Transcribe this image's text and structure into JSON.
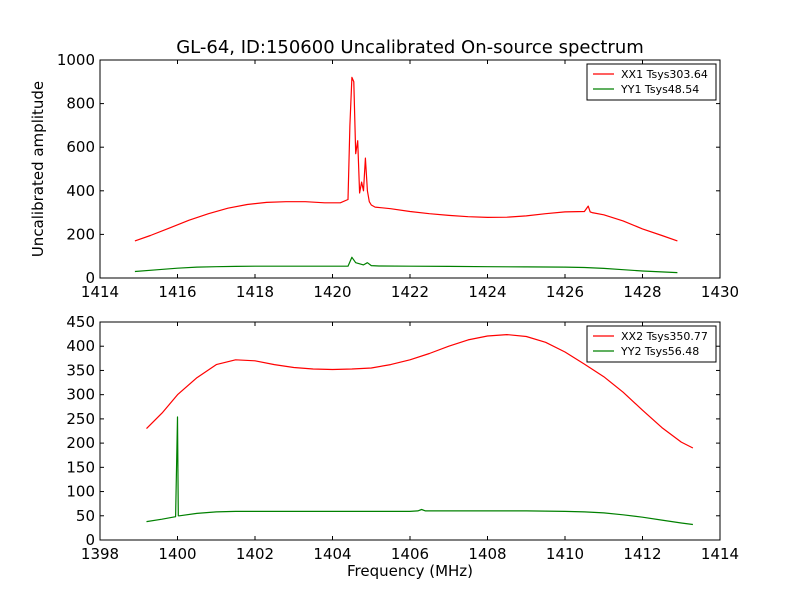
{
  "chart_data": [
    {
      "type": "line",
      "title": "GL-64, ID:150600 Uncalibrated On-source spectrum",
      "xlabel": "",
      "ylabel": "Uncalibrated amplitude",
      "xlim": [
        1414,
        1430
      ],
      "ylim": [
        0,
        1000
      ],
      "xticks": [
        "1414",
        "1416",
        "1418",
        "1420",
        "1422",
        "1424",
        "1426",
        "1428",
        "1430"
      ],
      "yticks": [
        "0",
        "200",
        "400",
        "600",
        "800",
        "1000"
      ],
      "legend_position": "top-right",
      "series": [
        {
          "name": "XX1 Tsys303.64",
          "color": "#ff0000",
          "x": [
            1414.9,
            1415.3,
            1415.8,
            1416.3,
            1416.8,
            1417.3,
            1417.8,
            1418.3,
            1418.8,
            1419.3,
            1419.8,
            1420.2,
            1420.4,
            1420.45,
            1420.5,
            1420.55,
            1420.6,
            1420.65,
            1420.7,
            1420.75,
            1420.8,
            1420.85,
            1420.9,
            1420.95,
            1421.0,
            1421.1,
            1421.5,
            1422.0,
            1422.5,
            1423.0,
            1423.5,
            1424.0,
            1424.5,
            1425.0,
            1425.5,
            1426.0,
            1426.5,
            1426.6,
            1426.65,
            1426.7,
            1427.0,
            1427.5,
            1428.0,
            1428.5,
            1428.9
          ],
          "values": [
            170,
            195,
            230,
            265,
            295,
            320,
            337,
            347,
            350,
            350,
            345,
            345,
            360,
            700,
            920,
            900,
            570,
            630,
            390,
            440,
            400,
            550,
            400,
            350,
            335,
            325,
            318,
            305,
            295,
            287,
            281,
            278,
            279,
            285,
            295,
            303,
            305,
            330,
            303,
            300,
            290,
            262,
            225,
            195,
            170
          ]
        },
        {
          "name": "YY1 Tsys48.54",
          "color": "#008000",
          "x": [
            1414.9,
            1415.5,
            1416.0,
            1416.5,
            1417.0,
            1417.5,
            1418.0,
            1419.0,
            1420.0,
            1420.4,
            1420.5,
            1420.6,
            1420.7,
            1420.8,
            1420.9,
            1421.0,
            1421.2,
            1422.0,
            1423.0,
            1424.0,
            1425.0,
            1426.0,
            1426.5,
            1427.0,
            1427.5,
            1428.0,
            1428.9
          ],
          "values": [
            30,
            38,
            45,
            50,
            52,
            53,
            54,
            54,
            54,
            54,
            95,
            70,
            65,
            60,
            70,
            57,
            55,
            54,
            53,
            52,
            51,
            50,
            48,
            44,
            38,
            32,
            25
          ]
        }
      ]
    },
    {
      "type": "line",
      "title": "",
      "xlabel": "Frequency (MHz)",
      "ylabel": "",
      "xlim": [
        1398,
        1414
      ],
      "ylim": [
        0,
        450
      ],
      "xticks": [
        "1398",
        "1400",
        "1402",
        "1404",
        "1406",
        "1408",
        "1410",
        "1412",
        "1414"
      ],
      "yticks": [
        "0",
        "50",
        "100",
        "150",
        "200",
        "250",
        "300",
        "350",
        "400",
        "450"
      ],
      "legend_position": "top-right",
      "series": [
        {
          "name": "XX2 Tsys350.77",
          "color": "#ff0000",
          "x": [
            1399.2,
            1399.6,
            1400.0,
            1400.5,
            1401.0,
            1401.5,
            1402.0,
            1402.5,
            1403.0,
            1403.5,
            1404.0,
            1404.5,
            1405.0,
            1405.5,
            1406.0,
            1406.5,
            1407.0,
            1407.5,
            1408.0,
            1408.5,
            1409.0,
            1409.5,
            1410.0,
            1410.5,
            1411.0,
            1411.5,
            1412.0,
            1412.5,
            1413.0,
            1413.3
          ],
          "values": [
            230,
            262,
            300,
            335,
            362,
            372,
            370,
            362,
            356,
            353,
            352,
            353,
            355,
            362,
            372,
            385,
            400,
            413,
            421,
            424,
            420,
            408,
            388,
            363,
            337,
            305,
            268,
            232,
            202,
            190
          ]
        },
        {
          "name": "YY2 Tsys56.48",
          "color": "#008000",
          "x": [
            1399.2,
            1399.6,
            1399.95,
            1400.0,
            1400.02,
            1400.05,
            1400.5,
            1401.0,
            1401.5,
            1402.0,
            1403.0,
            1404.0,
            1405.0,
            1406.0,
            1406.2,
            1406.3,
            1406.4,
            1407.0,
            1408.0,
            1409.0,
            1410.0,
            1410.5,
            1411.0,
            1411.5,
            1412.0,
            1412.5,
            1413.0,
            1413.3
          ],
          "values": [
            38,
            43,
            48,
            254,
            50,
            50,
            55,
            58,
            59,
            59,
            59,
            59,
            59,
            59,
            60,
            63,
            60,
            60,
            60,
            60,
            59,
            58,
            56,
            52,
            47,
            41,
            35,
            32
          ]
        }
      ]
    }
  ]
}
